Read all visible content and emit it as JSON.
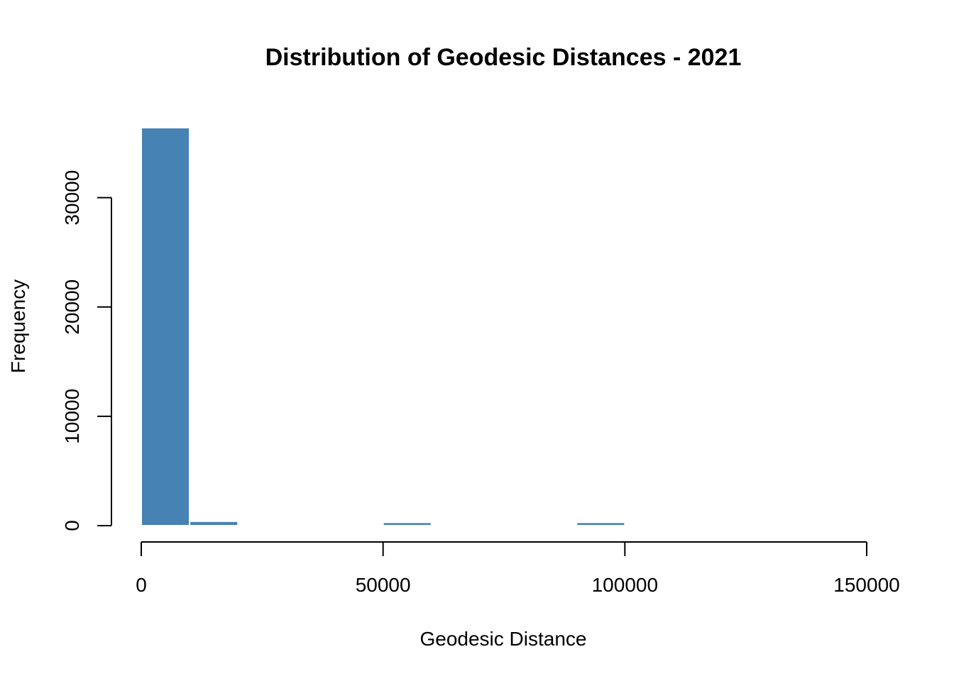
{
  "chart_data": {
    "type": "bar",
    "title": "Distribution of Geodesic Distances - 2021",
    "xlabel": "Geodesic Distance",
    "ylabel": "Frequency",
    "bar_color": "#4682B4",
    "bins": [
      {
        "x0": 0,
        "x1": 10000,
        "count": 36400
      },
      {
        "x0": 10000,
        "x1": 20000,
        "count": 400
      },
      {
        "x0": 20000,
        "x1": 30000,
        "count": 0
      },
      {
        "x0": 30000,
        "x1": 40000,
        "count": 0
      },
      {
        "x0": 40000,
        "x1": 50000,
        "count": 0
      },
      {
        "x0": 50000,
        "x1": 60000,
        "count": 300
      },
      {
        "x0": 60000,
        "x1": 70000,
        "count": 0
      },
      {
        "x0": 70000,
        "x1": 80000,
        "count": 0
      },
      {
        "x0": 80000,
        "x1": 90000,
        "count": 0
      },
      {
        "x0": 90000,
        "x1": 100000,
        "count": 300
      }
    ],
    "xlim": [
      0,
      150000
    ],
    "ylim": [
      0,
      36400
    ],
    "x_ticks": [
      0,
      50000,
      100000,
      150000
    ],
    "x_tick_labels": [
      "0",
      "50000",
      "100000",
      "150000"
    ],
    "y_ticks": [
      0,
      10000,
      20000,
      30000
    ],
    "y_tick_labels": [
      "0",
      "10000",
      "20000",
      "30000"
    ],
    "grid": false,
    "legend": "none"
  }
}
